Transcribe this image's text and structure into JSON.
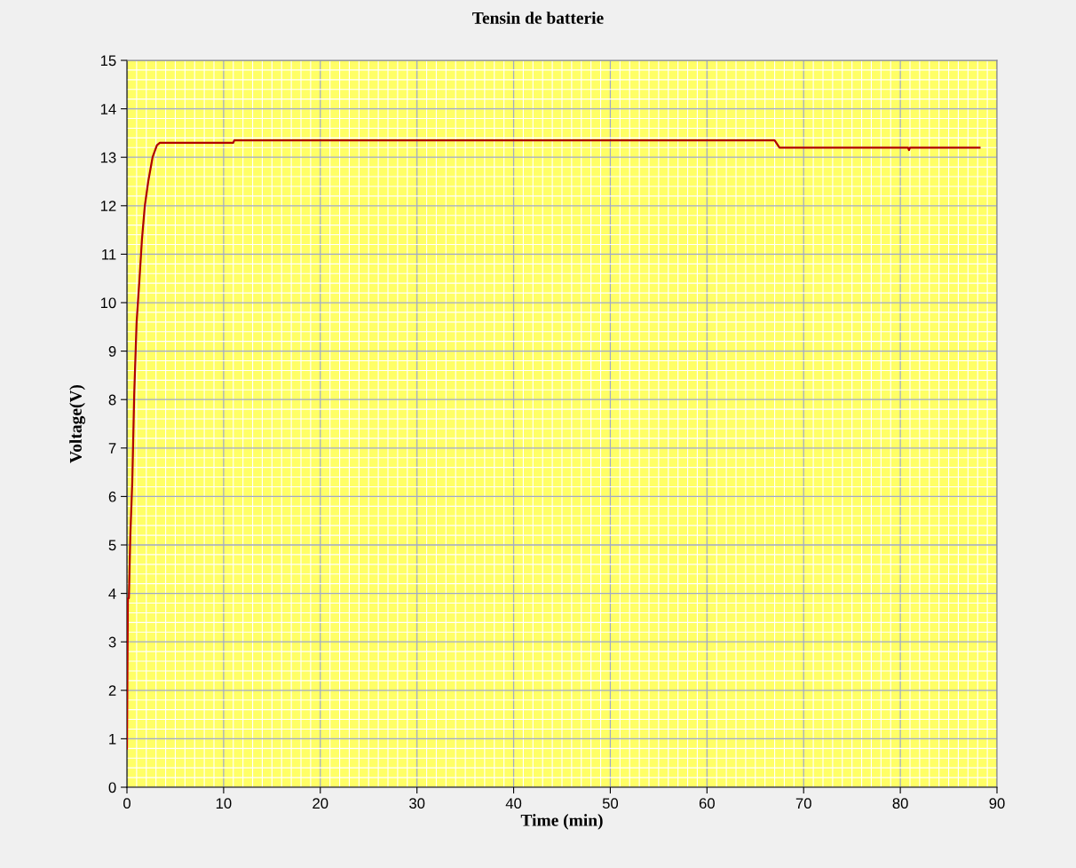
{
  "chart_data": {
    "type": "line",
    "title": "Tensin de batterie",
    "xlabel": "Time (min)",
    "ylabel": "Voltage(V)",
    "series": [
      {
        "color": "#b00000",
        "x": [
          0,
          0.05,
          0.1,
          0.2,
          0.35,
          0.55,
          0.65,
          0.75,
          0.9,
          1.0,
          1.3,
          1.55,
          1.85,
          2.2,
          2.65,
          3.1,
          3.4,
          11,
          11.1,
          67,
          67.5,
          80.8,
          80.9,
          81.0,
          88.2
        ],
        "values": [
          0.8,
          2.4,
          3.9,
          3.9,
          5.2,
          6.3,
          7.2,
          8.1,
          9.0,
          9.6,
          10.5,
          11.3,
          12.0,
          12.5,
          13.0,
          13.25,
          13.3,
          13.3,
          13.35,
          13.35,
          13.2,
          13.2,
          13.15,
          13.2,
          13.2
        ]
      }
    ],
    "xlim": [
      0,
      90
    ],
    "xticks": [
      0,
      10,
      20,
      30,
      40,
      50,
      60,
      70,
      80,
      90
    ],
    "ylim": [
      0,
      15
    ],
    "yticks": [
      0,
      1,
      2,
      3,
      4,
      5,
      6,
      7,
      8,
      9,
      10,
      11,
      12,
      13,
      14,
      15
    ],
    "grid": true,
    "marker": "none",
    "line_style": "solid"
  }
}
